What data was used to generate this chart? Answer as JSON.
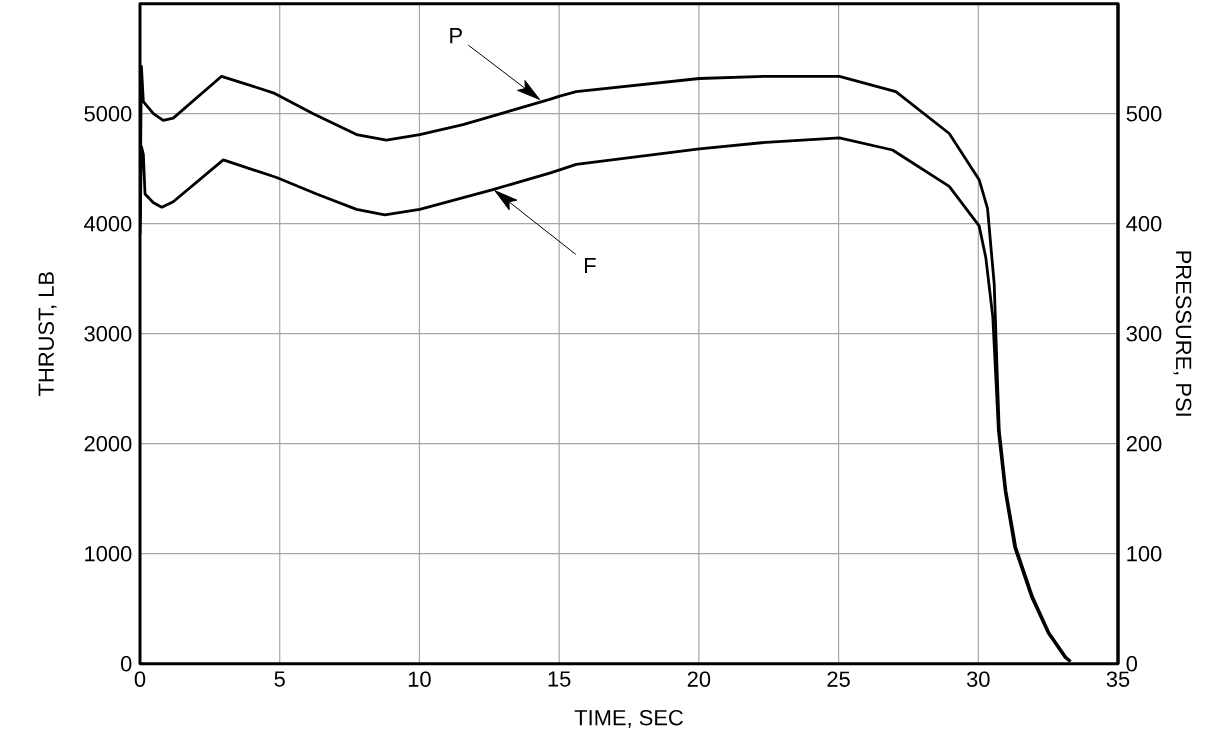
{
  "chart_data": {
    "type": "line",
    "xlabel": "TIME, SEC",
    "ylabel": "THRUST, LB",
    "y2label": "PRESSURE, PSI",
    "xlim": [
      0,
      35
    ],
    "ylim": [
      0,
      6000
    ],
    "y2lim": [
      0,
      600
    ],
    "xticks": [
      0,
      5,
      10,
      15,
      20,
      25,
      30,
      35
    ],
    "yticks": [
      0,
      1000,
      2000,
      3000,
      4000,
      5000
    ],
    "y2ticks": [
      0,
      100,
      200,
      300,
      400,
      500
    ],
    "grid": true,
    "series": [
      {
        "color": "#000000",
        "axis": "y2",
        "x": [
          0,
          0.05,
          0.12,
          0.48,
          0.83,
          1.19,
          2.92,
          4.77,
          6.2,
          7.75,
          8.82,
          10.01,
          11.56,
          14.66,
          15.02,
          15.61,
          20.02,
          22.4,
          25.03,
          27.05,
          28.96,
          30.03,
          30.33,
          30.57,
          30.69,
          30.75,
          30.99,
          31.34,
          31.94,
          32.53,
          33.13,
          33.31
        ],
        "values": [
          400,
          543,
          511,
          500,
          494,
          496,
          534,
          519,
          500,
          481,
          476,
          481,
          490,
          513,
          516,
          520,
          532,
          534,
          534,
          520,
          482,
          440,
          414,
          345,
          254,
          212,
          157,
          106,
          61,
          28,
          6,
          2
        ]
      },
      {
        "color": "#000000",
        "x": [
          0,
          0.05,
          0.12,
          0.18,
          0.48,
          0.78,
          1.19,
          2.98,
          4.89,
          6.32,
          7.75,
          8.76,
          10.01,
          12.63,
          14.66,
          15.02,
          15.61,
          20.02,
          22.4,
          25.03,
          26.93,
          28.96,
          30.03,
          30.27,
          30.52,
          30.64,
          30.72,
          30.96,
          31.3,
          31.9,
          32.5,
          33.1,
          33.28
        ],
        "values": [
          3900,
          4700,
          4630,
          4270,
          4190,
          4150,
          4200,
          4580,
          4420,
          4270,
          4130,
          4080,
          4130,
          4310,
          4460,
          4490,
          4540,
          4680,
          4740,
          4780,
          4670,
          4340,
          3980,
          3690,
          3150,
          2540,
          2120,
          1570,
          1060,
          610,
          280,
          60,
          20
        ]
      }
    ],
    "annotations": [
      {
        "text": "P",
        "x": 14.3,
        "y": 5130
      },
      {
        "text": "F",
        "x": 12.7,
        "y": 4300
      }
    ]
  }
}
